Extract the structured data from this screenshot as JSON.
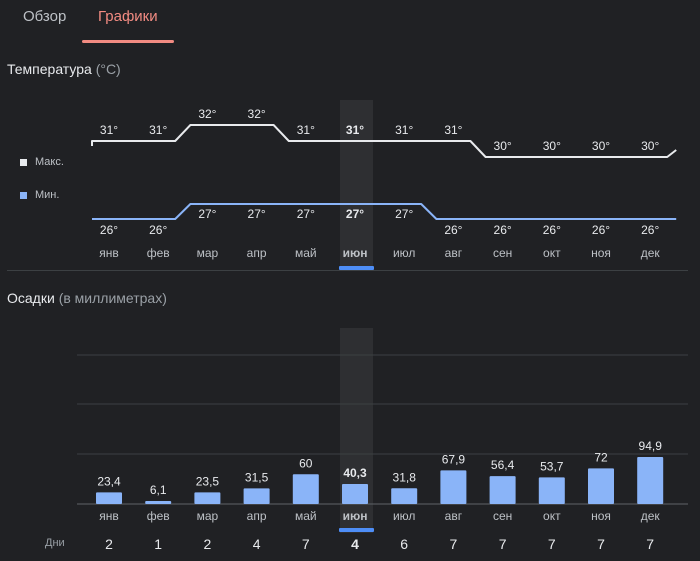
{
  "tabs": [
    {
      "label": "Обзор",
      "active": false
    },
    {
      "label": "Графики",
      "active": true
    }
  ],
  "temperature": {
    "title": "Температура",
    "unit": "(°C)",
    "legend": [
      {
        "label": "Макс.",
        "color": "#e8eaed"
      },
      {
        "label": "Мин.",
        "color": "#8ab4f8"
      }
    ]
  },
  "precipitation": {
    "title": "Осадки",
    "unit": "(в миллиметрах)",
    "days_label": "Дни"
  },
  "colors": {
    "background": "#202124",
    "max_line": "#e8eaed",
    "min_line": "#8ab4f8",
    "bar": "#8ab4f8",
    "accent_tab": "#f28b82",
    "selected": "#4e8ef7"
  },
  "selected_month_index": 5,
  "chart_data": [
    {
      "type": "line",
      "title": "Температура (°C)",
      "categories": [
        "янв",
        "фев",
        "мар",
        "апр",
        "май",
        "июн",
        "июл",
        "авг",
        "сен",
        "окт",
        "ноя",
        "дек"
      ],
      "series": [
        {
          "name": "Макс.",
          "values": [
            31,
            31,
            32,
            32,
            31,
            31,
            31,
            31,
            30,
            30,
            30,
            30
          ]
        },
        {
          "name": "Мин.",
          "values": [
            26,
            26,
            27,
            27,
            27,
            27,
            27,
            26,
            26,
            26,
            26,
            26
          ]
        }
      ],
      "value_labels": {
        "max": [
          "31°",
          "31°",
          "32°",
          "32°",
          "31°",
          "31°",
          "31°",
          "31°",
          "30°",
          "30°",
          "30°",
          "30°"
        ],
        "min": [
          "26°",
          "26°",
          "27°",
          "27°",
          "27°",
          "27°",
          "27°",
          "26°",
          "26°",
          "26°",
          "26°",
          "26°"
        ]
      },
      "grid": false
    },
    {
      "type": "bar",
      "title": "Осадки (в миллиметрах)",
      "categories": [
        "янв",
        "фев",
        "мар",
        "апр",
        "май",
        "июн",
        "июл",
        "авг",
        "сен",
        "окт",
        "ноя",
        "дек"
      ],
      "values": [
        23.4,
        6.1,
        23.5,
        31.5,
        60,
        40.3,
        31.8,
        67.9,
        56.4,
        53.7,
        72,
        94.9
      ],
      "value_labels": [
        "23,4",
        "6,1",
        "23,5",
        "31,5",
        "60",
        "40,3",
        "31,8",
        "67,9",
        "56,4",
        "53,7",
        "72",
        "94,9"
      ],
      "ylim": [
        0,
        300
      ],
      "grid": true
    }
  ],
  "days": [
    "2",
    "1",
    "2",
    "4",
    "7",
    "4",
    "6",
    "7",
    "7",
    "7",
    "7",
    "7"
  ]
}
